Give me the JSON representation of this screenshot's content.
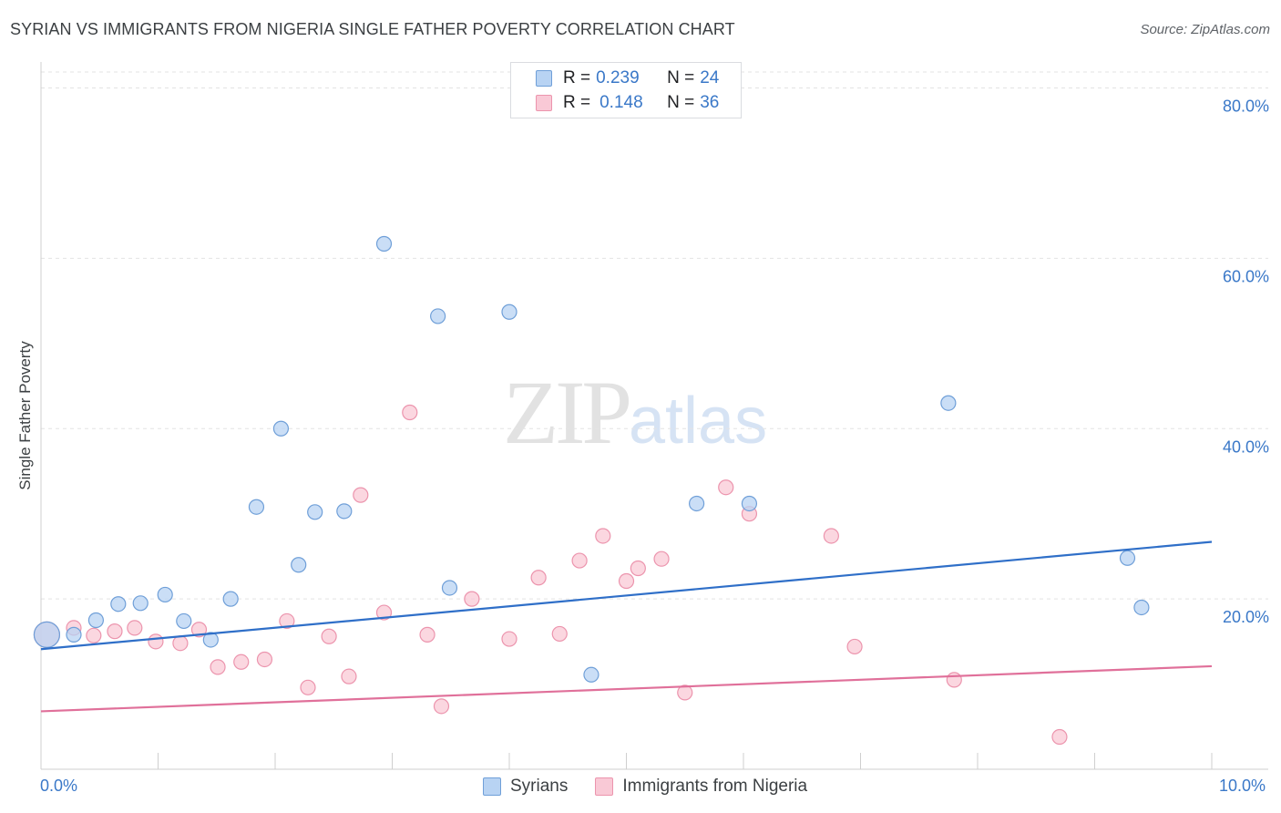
{
  "title": "SYRIAN VS IMMIGRANTS FROM NIGERIA SINGLE FATHER POVERTY CORRELATION CHART",
  "source": "Source: ZipAtlas.com",
  "watermark": {
    "zip": "ZIP",
    "atlas": "atlas"
  },
  "legend_top": {
    "rows": [
      {
        "r_label": "R =",
        "r_value": "0.239",
        "n_label": "N =",
        "n_value": "24"
      },
      {
        "r_label": "R =",
        "r_value": "0.148",
        "n_label": "N =",
        "n_value": "36"
      }
    ]
  },
  "chart_data": {
    "type": "scatter",
    "title": "SYRIAN VS IMMIGRANTS FROM NIGERIA SINGLE FATHER POVERTY CORRELATION CHART",
    "xlabel": "",
    "ylabel": "Single Father Poverty",
    "xlim": [
      0,
      10
    ],
    "ylim": [
      0,
      80
    ],
    "x_tick_labels": [
      "0.0%",
      "10.0%"
    ],
    "y_tick_labels": [
      "20.0%",
      "40.0%",
      "60.0%",
      "80.0%"
    ],
    "y_ticks": [
      20,
      40,
      60,
      80
    ],
    "grid": "horizontal dashed",
    "legend_position": "bottom-center",
    "colors": {
      "syrians_fill": "#b8d3f3",
      "syrians_stroke": "#6f9fd8",
      "syrians_line": "#2f6fc8",
      "nigeria_fill": "#f9c9d6",
      "nigeria_stroke": "#ec94ad",
      "nigeria_line": "#e0709a",
      "accent_text": "#3a78c8"
    },
    "series": [
      {
        "name": "Syrians",
        "trend": {
          "x": [
            0,
            10
          ],
          "y": [
            14.1,
            26.7
          ]
        },
        "points": [
          [
            0.05,
            15.8
          ],
          [
            0.28,
            15.8
          ],
          [
            0.47,
            17.5
          ],
          [
            0.66,
            19.4
          ],
          [
            0.85,
            19.5
          ],
          [
            1.06,
            20.5
          ],
          [
            1.22,
            17.4
          ],
          [
            1.45,
            15.2
          ],
          [
            1.62,
            20.0
          ],
          [
            1.84,
            30.8
          ],
          [
            2.05,
            40.0
          ],
          [
            2.2,
            24.0
          ],
          [
            2.34,
            30.2
          ],
          [
            2.59,
            30.3
          ],
          [
            2.93,
            61.7
          ],
          [
            3.39,
            53.2
          ],
          [
            3.49,
            21.3
          ],
          [
            4.0,
            53.7
          ],
          [
            4.7,
            11.1
          ],
          [
            5.6,
            31.2
          ],
          [
            6.05,
            31.2
          ],
          [
            7.75,
            43.0
          ],
          [
            9.28,
            24.8
          ],
          [
            9.4,
            19.0
          ]
        ]
      },
      {
        "name": "Immigrants from Nigeria",
        "trend": {
          "x": [
            0,
            10
          ],
          "y": [
            6.8,
            12.1
          ]
        },
        "points": [
          [
            0.05,
            15.8
          ],
          [
            0.28,
            16.6
          ],
          [
            0.45,
            15.7
          ],
          [
            0.63,
            16.2
          ],
          [
            0.8,
            16.6
          ],
          [
            0.98,
            15.0
          ],
          [
            1.19,
            14.8
          ],
          [
            1.35,
            16.4
          ],
          [
            1.51,
            12.0
          ],
          [
            1.71,
            12.6
          ],
          [
            1.91,
            12.9
          ],
          [
            2.1,
            17.4
          ],
          [
            2.28,
            9.6
          ],
          [
            2.46,
            15.6
          ],
          [
            2.63,
            10.9
          ],
          [
            2.73,
            32.2
          ],
          [
            2.93,
            18.4
          ],
          [
            3.15,
            41.9
          ],
          [
            3.3,
            15.8
          ],
          [
            3.42,
            7.4
          ],
          [
            3.68,
            20.0
          ],
          [
            4.0,
            15.3
          ],
          [
            4.25,
            22.5
          ],
          [
            4.43,
            15.9
          ],
          [
            4.6,
            24.5
          ],
          [
            4.8,
            27.4
          ],
          [
            5.0,
            22.1
          ],
          [
            5.1,
            23.6
          ],
          [
            5.3,
            24.7
          ],
          [
            5.5,
            9.0
          ],
          [
            5.85,
            33.1
          ],
          [
            6.05,
            30.0
          ],
          [
            6.75,
            27.4
          ],
          [
            6.95,
            14.4
          ],
          [
            7.8,
            10.5
          ],
          [
            8.7,
            3.8
          ]
        ]
      }
    ]
  },
  "legend_bottom": [
    {
      "label": "Syrians"
    },
    {
      "label": "Immigrants from Nigeria"
    }
  ]
}
